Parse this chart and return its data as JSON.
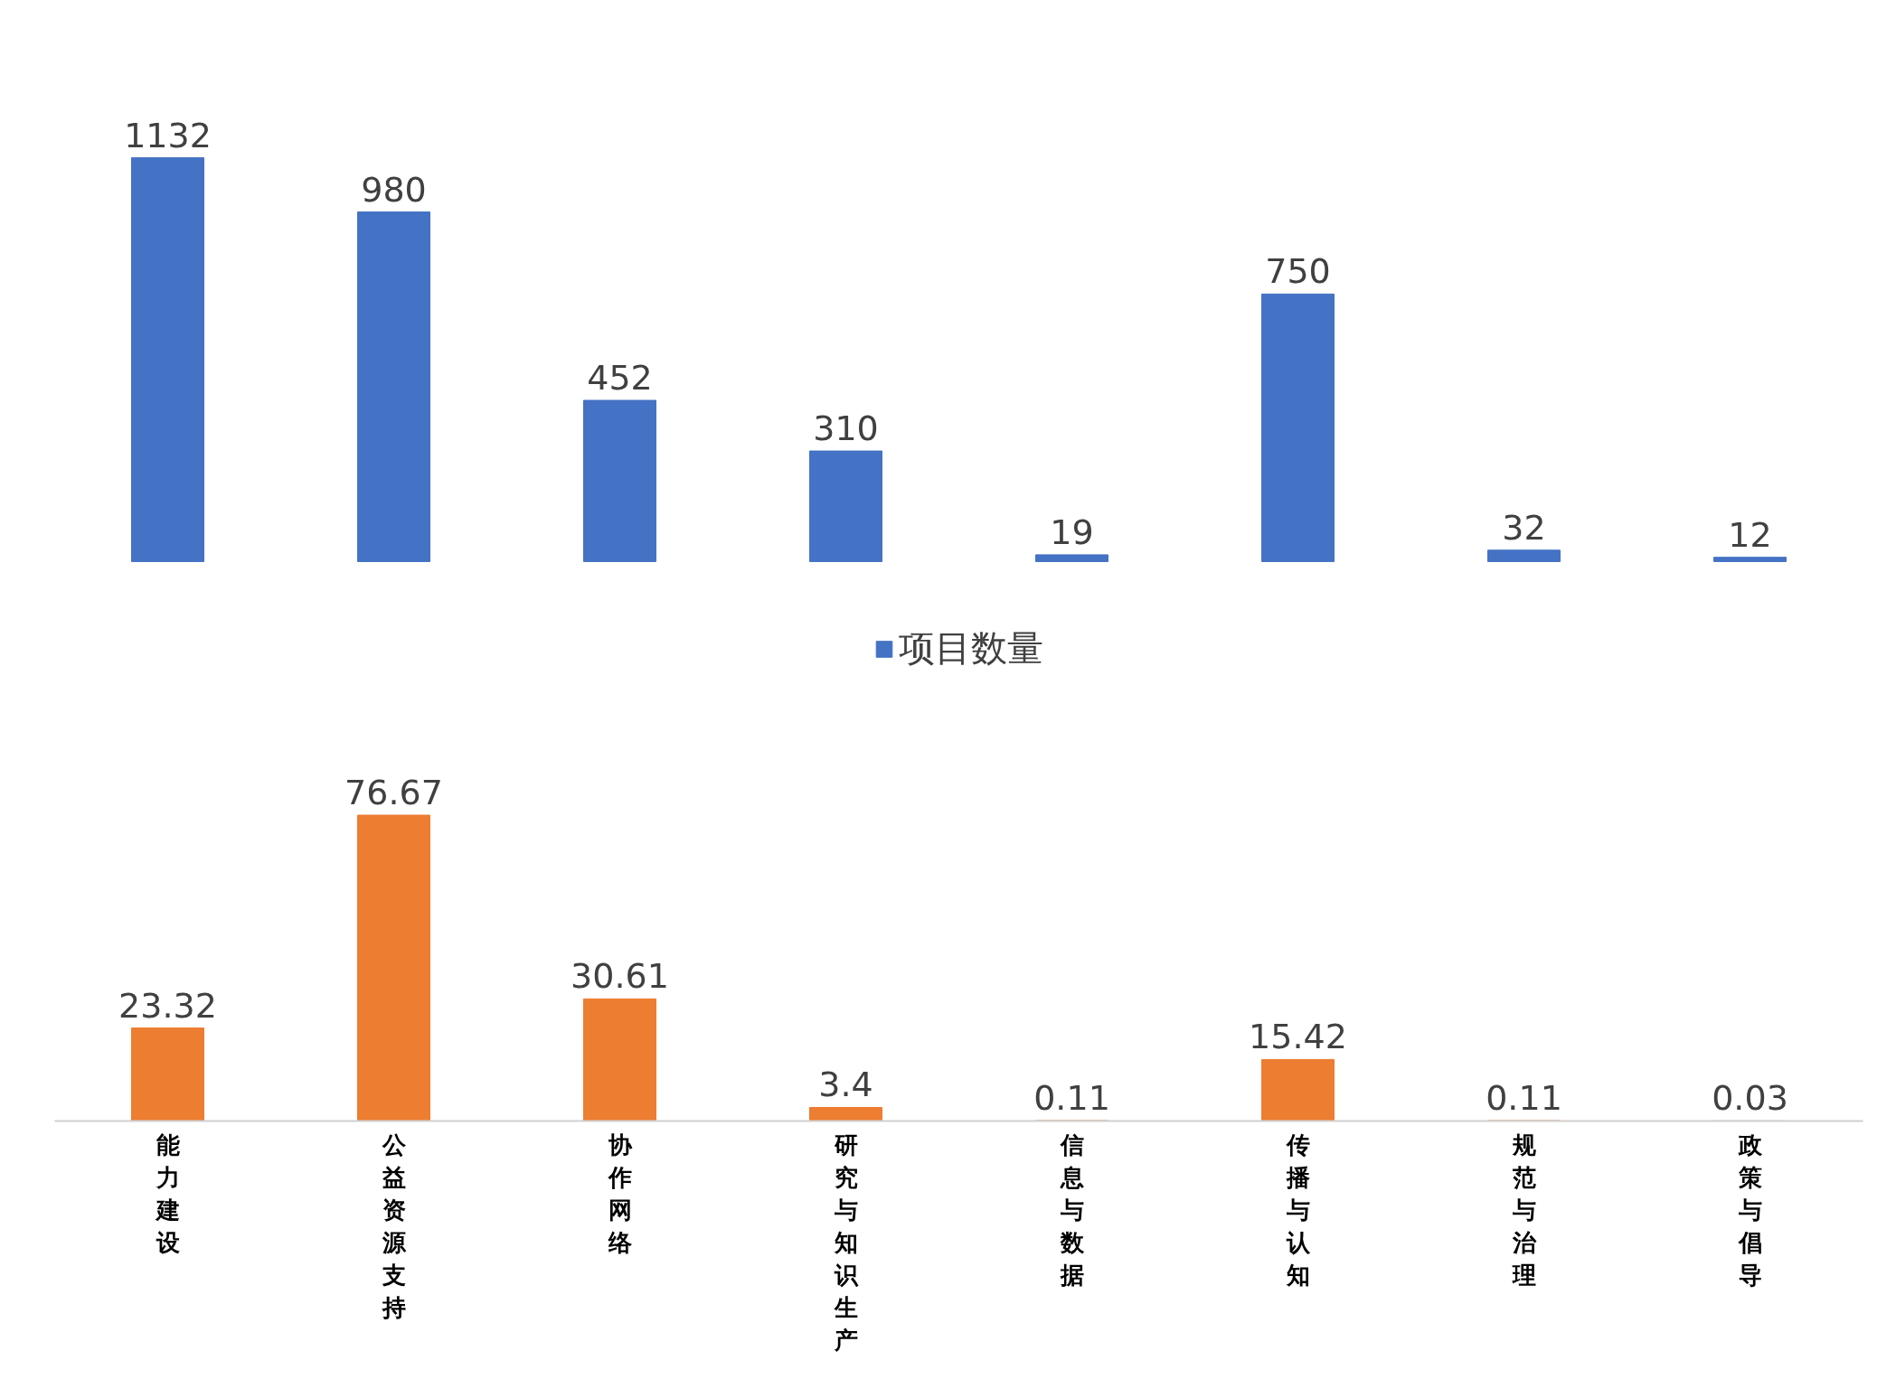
{
  "chart_data": [
    {
      "type": "bar",
      "categories": [
        "能力建设",
        "公益资源支持",
        "协作网络",
        "研究与知识生产",
        "信息与数据",
        "传播与认知",
        "规范与治理",
        "政策与倡导"
      ],
      "tick_labels": false,
      "data_labels": true,
      "legend": "bottom",
      "series": [
        {
          "name": "项目数量",
          "color": "#4472c4",
          "values": [
            1132,
            980,
            452,
            310,
            19,
            750,
            32,
            12
          ]
        }
      ]
    },
    {
      "type": "bar",
      "categories": [
        "能力建设",
        "公益资源支持",
        "协作网络",
        "研究与知识生产",
        "信息与数据",
        "传播与认知",
        "规范与治理",
        "政策与倡导"
      ],
      "tick_labels": "x",
      "data_labels": true,
      "series": [
        {
          "color": "#ed7d31",
          "values": [
            23.32,
            76.67,
            30.61,
            3.4,
            0.11,
            15.42,
            0.11,
            0.03
          ]
        }
      ]
    }
  ]
}
